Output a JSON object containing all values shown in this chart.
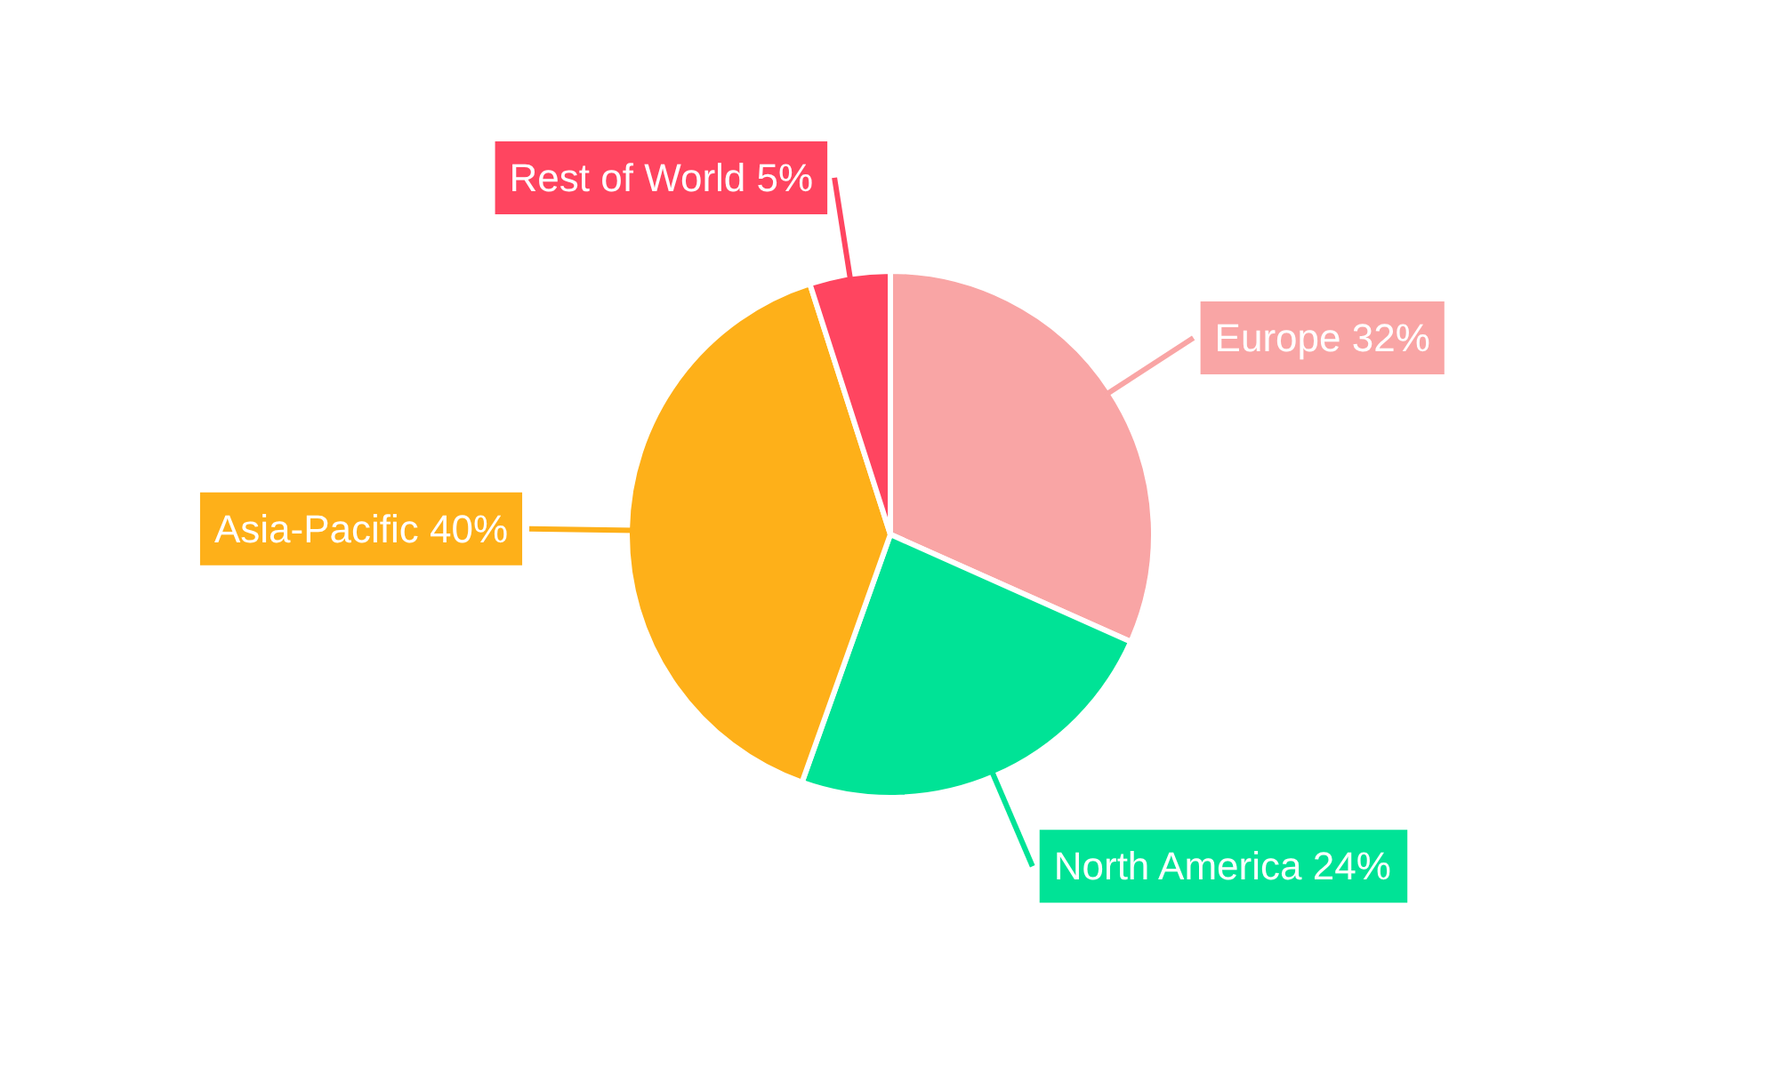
{
  "chart_data": {
    "type": "pie",
    "categories": [
      "Europe",
      "North America",
      "Asia-Pacific",
      "Rest of World"
    ],
    "values": [
      32,
      24,
      40,
      5
    ],
    "value_labels": [
      "32%",
      "24%",
      "40%",
      "5%"
    ],
    "colors": [
      "#f9a5a5",
      "#00e396",
      "#feb019",
      "#ff4560"
    ]
  }
}
